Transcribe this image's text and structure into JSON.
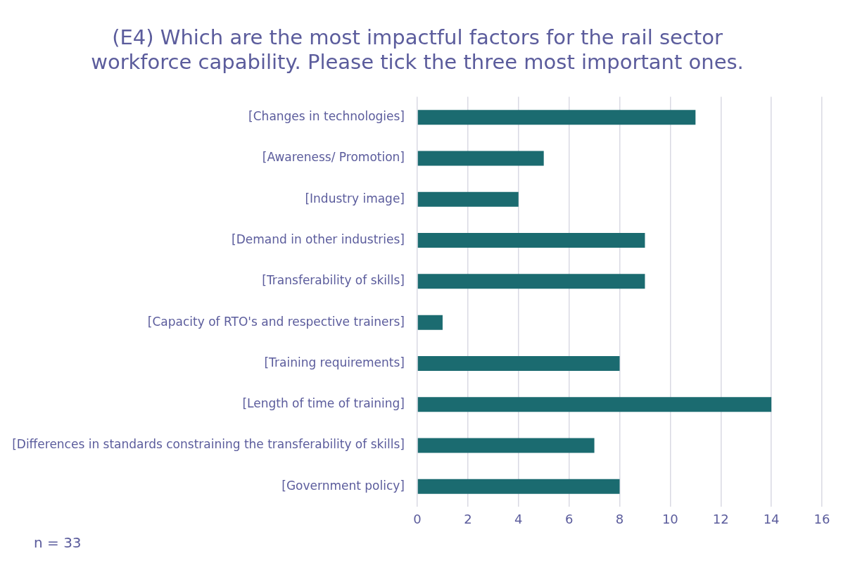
{
  "chart_data": {
    "type": "bar",
    "orientation": "horizontal",
    "title": [
      "(E4) Which are the most impactful factors for the rail sector",
      "workforce capability. Please tick the three most important ones."
    ],
    "categories": [
      "[Changes in technologies]",
      "[Awareness/ Promotion]",
      "[Industry image]",
      "[Demand in other industries]",
      "[Transferability of skills]",
      "[Capacity of RTO's and respective trainers]",
      "[Training requirements]",
      "[Length of time of training]",
      "[Differences in standards constraining the transferability of skills]",
      "[Government policy]"
    ],
    "values": [
      11,
      5,
      4,
      9,
      9,
      1,
      8,
      14,
      7,
      8
    ],
    "color": "#1b6b70",
    "xlim": [
      0,
      16
    ],
    "xticks": [
      0,
      2,
      4,
      6,
      8,
      10,
      12,
      14,
      16
    ],
    "grid": "x",
    "legend": false,
    "annotations": [
      "n = 33"
    ]
  }
}
